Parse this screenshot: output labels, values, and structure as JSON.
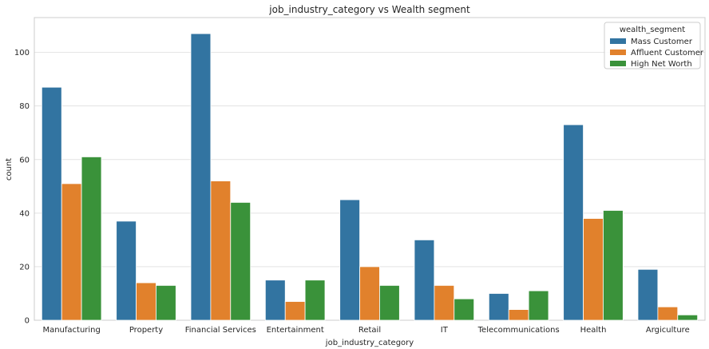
{
  "chart_data": {
    "type": "bar",
    "title": "job_industry_category vs Wealth segment",
    "xlabel": "job_industry_category",
    "ylabel": "count",
    "ylim": [
      0,
      113
    ],
    "yticks": [
      0,
      20,
      40,
      60,
      80,
      100
    ],
    "grid": true,
    "legend": {
      "title": "wealth_segment",
      "placement": "top-right"
    },
    "categories": [
      "Manufacturing",
      "Property",
      "Financial Services",
      "Entertainment",
      "Retail",
      "IT",
      "Telecommunications",
      "Health",
      "Argiculture"
    ],
    "series": [
      {
        "name": "Mass Customer",
        "color": "#3274a1",
        "values": [
          87,
          37,
          107,
          15,
          45,
          30,
          10,
          73,
          19
        ]
      },
      {
        "name": "Affluent Customer",
        "color": "#e1812c",
        "values": [
          51,
          14,
          52,
          7,
          20,
          13,
          4,
          38,
          5
        ]
      },
      {
        "name": "High Net Worth",
        "color": "#3a923a",
        "values": [
          61,
          13,
          44,
          15,
          13,
          8,
          11,
          41,
          2
        ]
      }
    ]
  }
}
